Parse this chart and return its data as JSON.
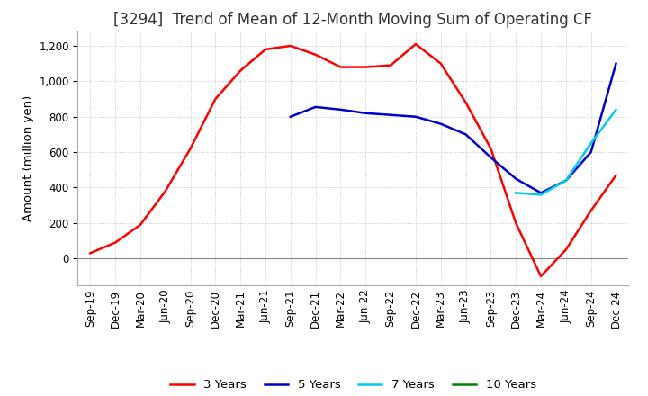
{
  "title": "[3294]  Trend of Mean of 12-Month Moving Sum of Operating CF",
  "ylabel": "Amount (million yen)",
  "ylim": [
    -150,
    1280
  ],
  "yticks": [
    0,
    200,
    400,
    600,
    800,
    1000,
    1200
  ],
  "background_color": "#ffffff",
  "grid_color": "#aaaaaa",
  "title_fontsize": 12,
  "label_fontsize": 9.5,
  "tick_fontsize": 8.5,
  "line_colors": {
    "3yr": "#ff0000",
    "5yr": "#0000cc",
    "7yr": "#00ccee",
    "10yr": "#008000"
  },
  "line_width": 1.8,
  "legend_labels": [
    "3 Years",
    "5 Years",
    "7 Years",
    "10 Years"
  ],
  "x_labels": [
    "Sep-19",
    "Dec-19",
    "Mar-20",
    "Jun-20",
    "Sep-20",
    "Dec-20",
    "Mar-21",
    "Jun-21",
    "Sep-21",
    "Dec-21",
    "Mar-22",
    "Jun-22",
    "Sep-22",
    "Dec-22",
    "Mar-23",
    "Jun-23",
    "Sep-23",
    "Dec-23",
    "Mar-24",
    "Jun-24",
    "Sep-24",
    "Dec-24"
  ],
  "data_3yr": [
    30,
    90,
    190,
    380,
    620,
    900,
    1060,
    1180,
    1200,
    1150,
    1080,
    1080,
    1090,
    1210,
    1100,
    880,
    620,
    200,
    -100,
    50,
    270,
    470
  ],
  "data_5yr": [
    null,
    null,
    null,
    null,
    null,
    null,
    null,
    null,
    800,
    855,
    840,
    820,
    810,
    800,
    760,
    700,
    570,
    450,
    370,
    440,
    600,
    1100
  ],
  "data_7yr": [
    null,
    null,
    null,
    null,
    null,
    null,
    null,
    null,
    null,
    null,
    null,
    null,
    null,
    null,
    null,
    null,
    null,
    370,
    360,
    440,
    650,
    840
  ],
  "data_10yr": [
    null,
    null,
    null,
    null,
    null,
    null,
    null,
    null,
    null,
    null,
    null,
    null,
    null,
    null,
    null,
    null,
    null,
    null,
    null,
    null,
    null,
    null
  ]
}
